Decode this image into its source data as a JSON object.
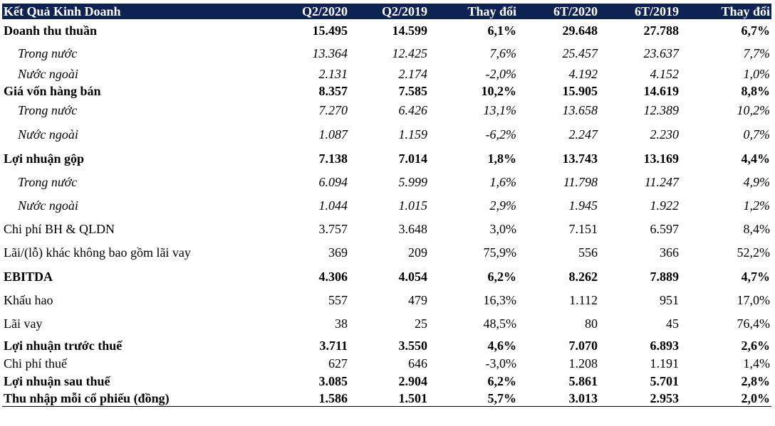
{
  "header": [
    "Kết Quả Kinh Doanh",
    "Q2/2020",
    "Q2/2019",
    "Thay đổi",
    "6T/2020",
    "6T/2019",
    "Thay đổi"
  ],
  "rows": [
    {
      "label": "Doanh thu thuần",
      "values": [
        "15.495",
        "14.599",
        "6,1%",
        "29.648",
        "27.788",
        "6,7%"
      ],
      "style": "bold",
      "h": 32
    },
    {
      "label": "Trong nước",
      "values": [
        "13.364",
        "12.425",
        "7,6%",
        "25.457",
        "23.637",
        "7,7%"
      ],
      "style": "sub",
      "h": 33
    },
    {
      "label": "Nước ngoài",
      "values": [
        "2.131",
        "2.174",
        "-2,0%",
        "4.192",
        "4.152",
        "1,0%"
      ],
      "style": "sub",
      "h": 25
    },
    {
      "label": "Giá vốn hàng bán",
      "values": [
        "8.357",
        "7.585",
        "10,2%",
        "15.905",
        "14.619",
        "8,8%"
      ],
      "style": "bold",
      "h": 22
    },
    {
      "label": "Trong nước",
      "values": [
        "7.270",
        "6.426",
        "13,1%",
        "13.658",
        "12.389",
        "10,2%"
      ],
      "style": "sub",
      "h": 33
    },
    {
      "label": "Nước ngoài",
      "values": [
        "1.087",
        "1.159",
        "-6,2%",
        "2.247",
        "2.230",
        "0,7%"
      ],
      "style": "sub",
      "h": 34
    },
    {
      "label": "Lợi nhuận gộp",
      "values": [
        "7.138",
        "7.014",
        "1,8%",
        "13.743",
        "13.169",
        "4,4%"
      ],
      "style": "bold",
      "h": 34
    },
    {
      "label": "Trong nước",
      "values": [
        "6.094",
        "5.999",
        "1,6%",
        "11.798",
        "11.247",
        "4,9%"
      ],
      "style": "sub",
      "h": 33
    },
    {
      "label": "Nước ngoài",
      "values": [
        "1.044",
        "1.015",
        "2,9%",
        "1.945",
        "1.922",
        "1,2%"
      ],
      "style": "sub",
      "h": 33
    },
    {
      "label": "Chi phí BH & QLDN",
      "values": [
        "3.757",
        "3.648",
        "3,0%",
        "7.151",
        "6.597",
        "8,4%"
      ],
      "style": "normal",
      "h": 33
    },
    {
      "label": "Lãi/(lỗ) khác không bao gồm lãi vay",
      "values": [
        "369",
        "209",
        "75,9%",
        "556",
        "366",
        "52,2%"
      ],
      "style": "normal",
      "h": 33
    },
    {
      "label": "EBITDA",
      "values": [
        "4.306",
        "4.054",
        "6,2%",
        "8.262",
        "7.889",
        "4,7%"
      ],
      "style": "bold",
      "h": 34
    },
    {
      "label": "Khấu hao",
      "values": [
        "557",
        "479",
        "16,3%",
        "1.112",
        "951",
        "17,0%"
      ],
      "style": "normal",
      "h": 33
    },
    {
      "label": "Lãi vay",
      "values": [
        "38",
        "25",
        "48,5%",
        "80",
        "45",
        "76,4%"
      ],
      "style": "normal",
      "h": 33
    },
    {
      "label": "Lợi nhuận trước thuế",
      "values": [
        "3.711",
        "3.550",
        "4,6%",
        "7.070",
        "6.893",
        "2,6%"
      ],
      "style": "bold",
      "h": 28
    },
    {
      "label": "Chi phí thuế",
      "values": [
        "627",
        "646",
        "-3,0%",
        "1.208",
        "1.191",
        "1,4%"
      ],
      "style": "normal",
      "h": 22
    },
    {
      "label": "Lợi nhuận sau thuế",
      "values": [
        "3.085",
        "2.904",
        "6,2%",
        "5.861",
        "5.701",
        "2,8%"
      ],
      "style": "bold",
      "h": 28
    },
    {
      "label": "Thu nhập mỗi cổ phiếu (đồng)",
      "values": [
        "1.586",
        "1.501",
        "5,7%",
        "3.013",
        "2.953",
        "2,0%"
      ],
      "style": "bold",
      "h": 19
    }
  ]
}
